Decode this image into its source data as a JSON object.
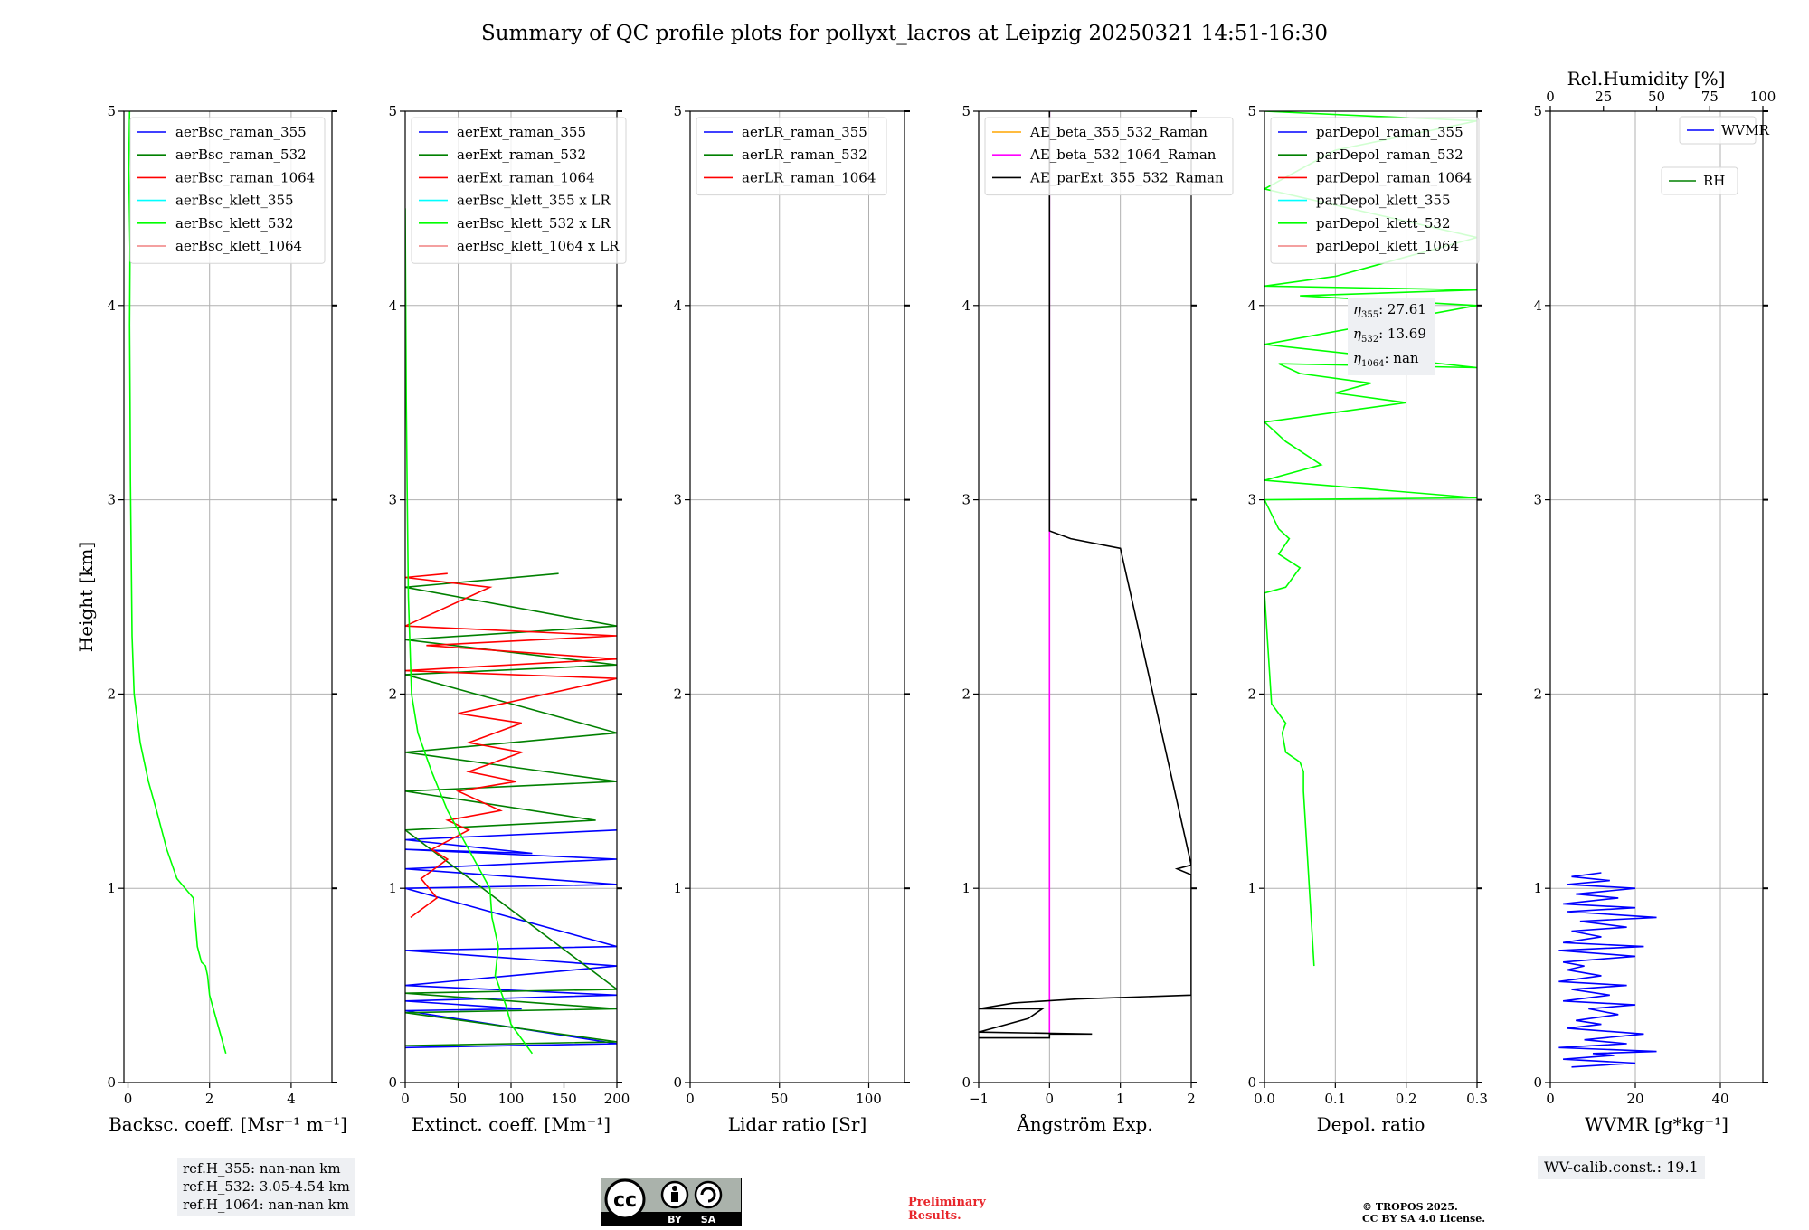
{
  "chart_data": {
    "type": "line",
    "title": "Summary of QC profile plots for pollyxt_lacros at Leipzig 20250321 14:51-16:30",
    "ylabel": "Height [km]",
    "ylim": [
      0,
      5
    ],
    "yticks": [
      "0",
      "1",
      "2",
      "3",
      "4",
      "5"
    ],
    "grid": true,
    "panels": [
      {
        "xlabel": "Backsc. coeff. [Msr⁻¹ m⁻¹]",
        "xlim": [
          -0.1,
          5
        ],
        "xticks": [
          0,
          2,
          4
        ],
        "xtick_labels": [
          "0",
          "2",
          "4"
        ],
        "legend_position": "upper-left",
        "series": [
          {
            "name": "aerBsc_raman_355",
            "color": "#0000ff",
            "x": [],
            "y": []
          },
          {
            "name": "aerBsc_raman_532",
            "color": "#008000",
            "x": [],
            "y": []
          },
          {
            "name": "aerBsc_raman_1064",
            "color": "#ff0000",
            "x": [],
            "y": []
          },
          {
            "name": "aerBsc_klett_355",
            "color": "#00ffff",
            "x": [],
            "y": []
          },
          {
            "name": "aerBsc_klett_532",
            "color": "#00ff00",
            "x": [
              2.4,
              2.2,
              2.0,
              1.95,
              1.9,
              1.8,
              1.7,
              1.6,
              1.2,
              0.95,
              0.7,
              0.5,
              0.3,
              0.15,
              0.1,
              0.08,
              0.06,
              0.05,
              0.04,
              0.05,
              0.02,
              0.04
            ],
            "y": [
              0.15,
              0.3,
              0.45,
              0.55,
              0.6,
              0.62,
              0.7,
              0.95,
              1.05,
              1.2,
              1.4,
              1.55,
              1.75,
              2.0,
              2.3,
              2.7,
              3.1,
              3.5,
              3.9,
              4.3,
              4.7,
              5.0
            ]
          },
          {
            "name": "aerBsc_klett_1064",
            "color": "#f08080",
            "x": [],
            "y": []
          }
        ]
      },
      {
        "xlabel": "Extinct. coeff. [Mm⁻¹]",
        "xlim": [
          0,
          200
        ],
        "xticks": [
          0,
          50,
          100,
          150,
          200
        ],
        "xtick_labels": [
          "0",
          "50",
          "100",
          "150",
          "200"
        ],
        "legend_position": "upper-left",
        "series": [
          {
            "name": "aerExt_raman_355",
            "color": "#0000ff",
            "x": [
              0,
              200,
              0,
              110,
              0,
              200,
              0,
              200,
              0,
              200,
              0,
              200,
              0,
              200,
              0,
              120,
              0,
              200
            ],
            "y": [
              0.18,
              0.2,
              0.37,
              0.38,
              0.42,
              0.45,
              0.5,
              0.6,
              0.68,
              0.7,
              1.0,
              1.02,
              1.1,
              1.15,
              1.2,
              1.18,
              1.25,
              1.3
            ]
          },
          {
            "name": "aerExt_raman_532",
            "color": "#008000",
            "x": [
              0,
              200,
              0,
              200,
              0,
              200,
              0,
              180,
              0,
              200,
              0,
              200,
              0,
              200,
              0,
              200,
              0,
              145
            ],
            "y": [
              0.19,
              0.21,
              0.36,
              0.38,
              0.46,
              0.48,
              1.3,
              1.35,
              1.5,
              1.55,
              1.7,
              1.8,
              2.1,
              2.15,
              2.28,
              2.35,
              2.55,
              2.62
            ]
          },
          {
            "name": "aerExt_raman_1064",
            "color": "#ff0000",
            "x": [
              5,
              30,
              15,
              40,
              25,
              60,
              40,
              90,
              50,
              105,
              60,
              110,
              60,
              110,
              50,
              200,
              0,
              200,
              20,
              200,
              0,
              80,
              0,
              40
            ],
            "y": [
              0.85,
              0.95,
              1.05,
              1.15,
              1.2,
              1.3,
              1.35,
              1.4,
              1.5,
              1.55,
              1.6,
              1.7,
              1.75,
              1.85,
              1.9,
              2.08,
              2.12,
              2.18,
              2.25,
              2.3,
              2.35,
              2.55,
              2.6,
              2.62
            ]
          },
          {
            "name": "aerBsc_klett_355 x LR",
            "color": "#00ffff",
            "x": [],
            "y": []
          },
          {
            "name": "aerBsc_klett_532 x LR",
            "color": "#00ff00",
            "x": [
              120,
              100,
              95,
              85,
              88,
              82,
              80,
              60,
              40,
              25,
              12,
              6,
              3,
              2,
              1,
              0
            ],
            "y": [
              0.15,
              0.3,
              0.4,
              0.55,
              0.7,
              0.85,
              1.0,
              1.2,
              1.4,
              1.6,
              1.8,
              2.0,
              2.5,
              3.0,
              3.5,
              4.5
            ]
          },
          {
            "name": "aerBsc_klett_1064 x LR",
            "color": "#f08080",
            "x": [],
            "y": []
          }
        ]
      },
      {
        "xlabel": "Lidar ratio [Sr]",
        "xlim": [
          0,
          120
        ],
        "xticks": [
          0,
          50,
          100
        ],
        "xtick_labels": [
          "0",
          "50",
          "100"
        ],
        "legend_position": "upper-left",
        "series": [
          {
            "name": "aerLR_raman_355",
            "color": "#0000ff",
            "x": [],
            "y": []
          },
          {
            "name": "aerLR_raman_532",
            "color": "#008000",
            "x": [],
            "y": []
          },
          {
            "name": "aerLR_raman_1064",
            "color": "#ff0000",
            "x": [],
            "y": []
          }
        ]
      },
      {
        "xlabel": "Ångström Exp.",
        "xlim": [
          -1,
          2
        ],
        "xticks": [
          -1,
          0,
          1,
          2
        ],
        "xtick_labels": [
          "−1",
          "0",
          "1",
          "2"
        ],
        "legend_position": "upper-left",
        "series": [
          {
            "name": "AE_beta_355_532_Raman",
            "color": "#ffa500",
            "x": [],
            "y": []
          },
          {
            "name": "AE_beta_532_1064_Raman",
            "color": "#ff00ff",
            "x": [
              0,
              0
            ],
            "y": [
              0.25,
              5.0
            ]
          },
          {
            "name": "AE_parExt_355_532_Raman",
            "color": "#000000",
            "x": [
              -1,
              0,
              0,
              0.6,
              -1,
              -0.6,
              -0.3,
              -0.1,
              -1,
              -0.5,
              0.4,
              2.0,
              2.0,
              1.8,
              2.0,
              1.0,
              0.3,
              0,
              0,
              0
            ],
            "y": [
              0.23,
              0.23,
              0.25,
              0.25,
              0.26,
              0.3,
              0.33,
              0.38,
              0.38,
              0.41,
              0.43,
              0.45,
              1.07,
              1.1,
              1.12,
              2.75,
              2.8,
              2.84,
              3.5,
              5.0
            ]
          }
        ]
      },
      {
        "xlabel": "Depol. ratio",
        "xlim": [
          0,
          0.3
        ],
        "xticks": [
          0.0,
          0.1,
          0.2,
          0.3
        ],
        "xtick_labels": [
          "0.0",
          "0.1",
          "0.2",
          "0.3"
        ],
        "legend_position": "upper-left",
        "series": [
          {
            "name": "parDepol_raman_355",
            "color": "#0000ff",
            "x": [],
            "y": []
          },
          {
            "name": "parDepol_raman_532",
            "color": "#008000",
            "x": [],
            "y": []
          },
          {
            "name": "parDepol_raman_1064",
            "color": "#ff0000",
            "x": [],
            "y": []
          },
          {
            "name": "parDepol_klett_355",
            "color": "#00ffff",
            "x": [],
            "y": []
          },
          {
            "name": "parDepol_klett_532",
            "color": "#00ff00",
            "x": [
              0.07,
              0.065,
              0.06,
              0.055,
              0.055,
              0.05,
              0.03,
              0.025,
              0.03,
              0.01,
              0.0,
              0.03,
              0.05,
              0.02,
              0.035,
              0.02,
              0.0,
              0.3,
              0.0,
              0.05,
              0.08,
              0.03,
              0.0,
              0.2,
              0.1,
              0.15,
              0.05,
              0.02,
              0.3,
              0.0,
              0.3,
              0.05,
              0.3,
              0.0,
              0.1,
              0.3,
              0.0,
              0.1,
              0.3,
              0.0
            ],
            "y": [
              0.6,
              0.9,
              1.2,
              1.5,
              1.6,
              1.65,
              1.7,
              1.8,
              1.85,
              1.95,
              2.52,
              2.55,
              2.65,
              2.72,
              2.8,
              2.85,
              3.0,
              3.01,
              3.1,
              3.15,
              3.18,
              3.3,
              3.4,
              3.5,
              3.55,
              3.6,
              3.65,
              3.7,
              3.68,
              3.8,
              4.0,
              4.05,
              4.08,
              4.1,
              4.15,
              4.35,
              4.6,
              4.8,
              4.95,
              5.0
            ]
          },
          {
            "name": "parDepol_klett_1064",
            "color": "#f08080",
            "x": [],
            "y": []
          }
        ]
      },
      {
        "xlabel": "WVMR [g*kg⁻¹]",
        "xlim": [
          0,
          50
        ],
        "xticks": [
          0,
          20,
          40
        ],
        "xtick_labels": [
          "0",
          "20",
          "40"
        ],
        "top_xlabel": "Rel.Humidity [%]",
        "top_xlim": [
          0,
          100
        ],
        "top_xticks": [
          0,
          25,
          50,
          75,
          100
        ],
        "top_xtick_labels": [
          "0",
          "25",
          "50",
          "75",
          "100"
        ],
        "legend_position": "upper-right",
        "series": [
          {
            "name": "WVMR",
            "color": "#0000ff",
            "x": [
              5,
              20,
              3,
              15,
              10,
              25,
              2,
              18,
              8,
              22,
              4,
              12,
              6,
              16,
              9,
              20,
              3,
              14,
              5,
              18,
              2,
              12,
              4,
              8,
              3,
              20,
              2,
              22,
              3,
              12,
              5,
              18,
              7,
              25,
              4,
              20,
              3,
              16,
              6,
              20,
              4,
              14,
              5,
              12
            ],
            "y": [
              0.08,
              0.1,
              0.12,
              0.14,
              0.15,
              0.16,
              0.18,
              0.2,
              0.22,
              0.25,
              0.28,
              0.3,
              0.32,
              0.35,
              0.38,
              0.4,
              0.42,
              0.45,
              0.48,
              0.5,
              0.52,
              0.55,
              0.58,
              0.6,
              0.62,
              0.65,
              0.68,
              0.7,
              0.72,
              0.75,
              0.78,
              0.8,
              0.83,
              0.85,
              0.88,
              0.9,
              0.92,
              0.95,
              0.97,
              1.0,
              1.02,
              1.04,
              1.06,
              1.08
            ]
          },
          {
            "name": "RH",
            "color": "#008000",
            "x": [],
            "y": []
          }
        ]
      }
    ]
  },
  "annotations": {
    "eta_355": "27.61",
    "eta_532": "13.69",
    "eta_1064": "nan",
    "eta_label": "η",
    "ref_h_355": "ref.H_355: nan-nan km",
    "ref_h_532": "ref.H_532: 3.05-4.54 km",
    "ref_h_1064": "ref.H_1064: nan-nan km",
    "wv_calib": "WV-calib.const.: 19.1",
    "preliminary_line1": "Preliminary",
    "preliminary_line2": "Results.",
    "copyright_line1": "© TROPOS 2025.",
    "copyright_line2": "CC BY SA 4.0 License.",
    "license_by": "BY",
    "license_sa": "SA"
  }
}
